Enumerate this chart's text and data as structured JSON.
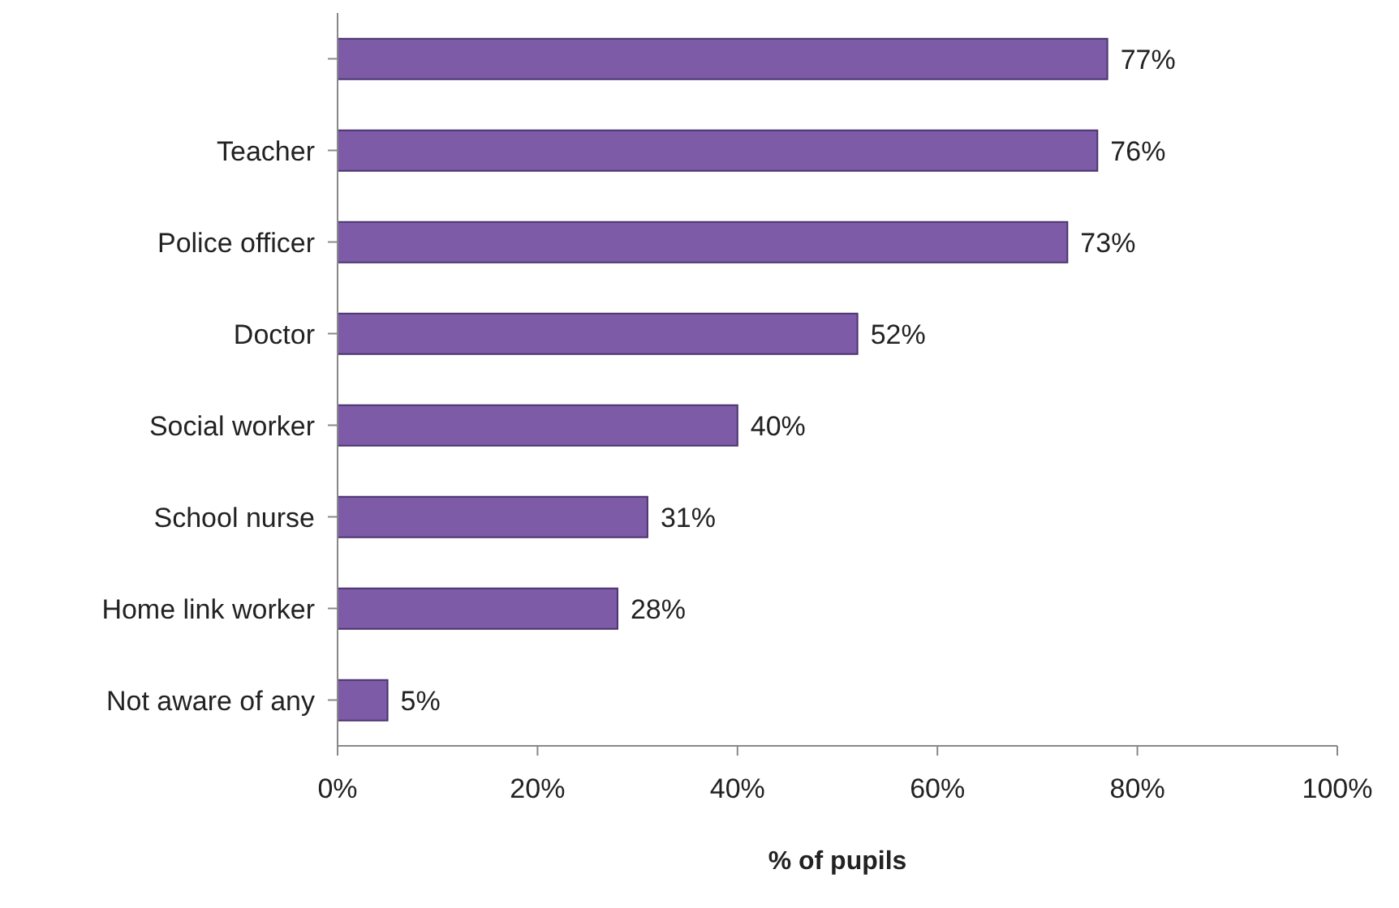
{
  "chart_data": {
    "type": "bar",
    "orientation": "horizontal",
    "xlabel": "% of pupils",
    "categories": [
      null,
      "Teacher",
      "Police officer",
      "Doctor",
      "Social worker",
      "School nurse",
      "Home link worker",
      "Not aware of any"
    ],
    "values": [
      77,
      76,
      73,
      52,
      40,
      31,
      28,
      5
    ],
    "value_labels": [
      "77%",
      "76%",
      "73%",
      "52%",
      "40%",
      "31%",
      "28%",
      "5%"
    ],
    "color": "#7d5ba6",
    "xlim": [
      0,
      100
    ],
    "xticks": [
      {
        "value": 0,
        "label": "0%"
      },
      {
        "value": 20,
        "label": "20%"
      },
      {
        "value": 40,
        "label": "40%"
      },
      {
        "value": 60,
        "label": "60%"
      },
      {
        "value": 80,
        "label": "80%"
      },
      {
        "value": 100,
        "label": "100%"
      }
    ],
    "grid": false,
    "legend": false
  }
}
